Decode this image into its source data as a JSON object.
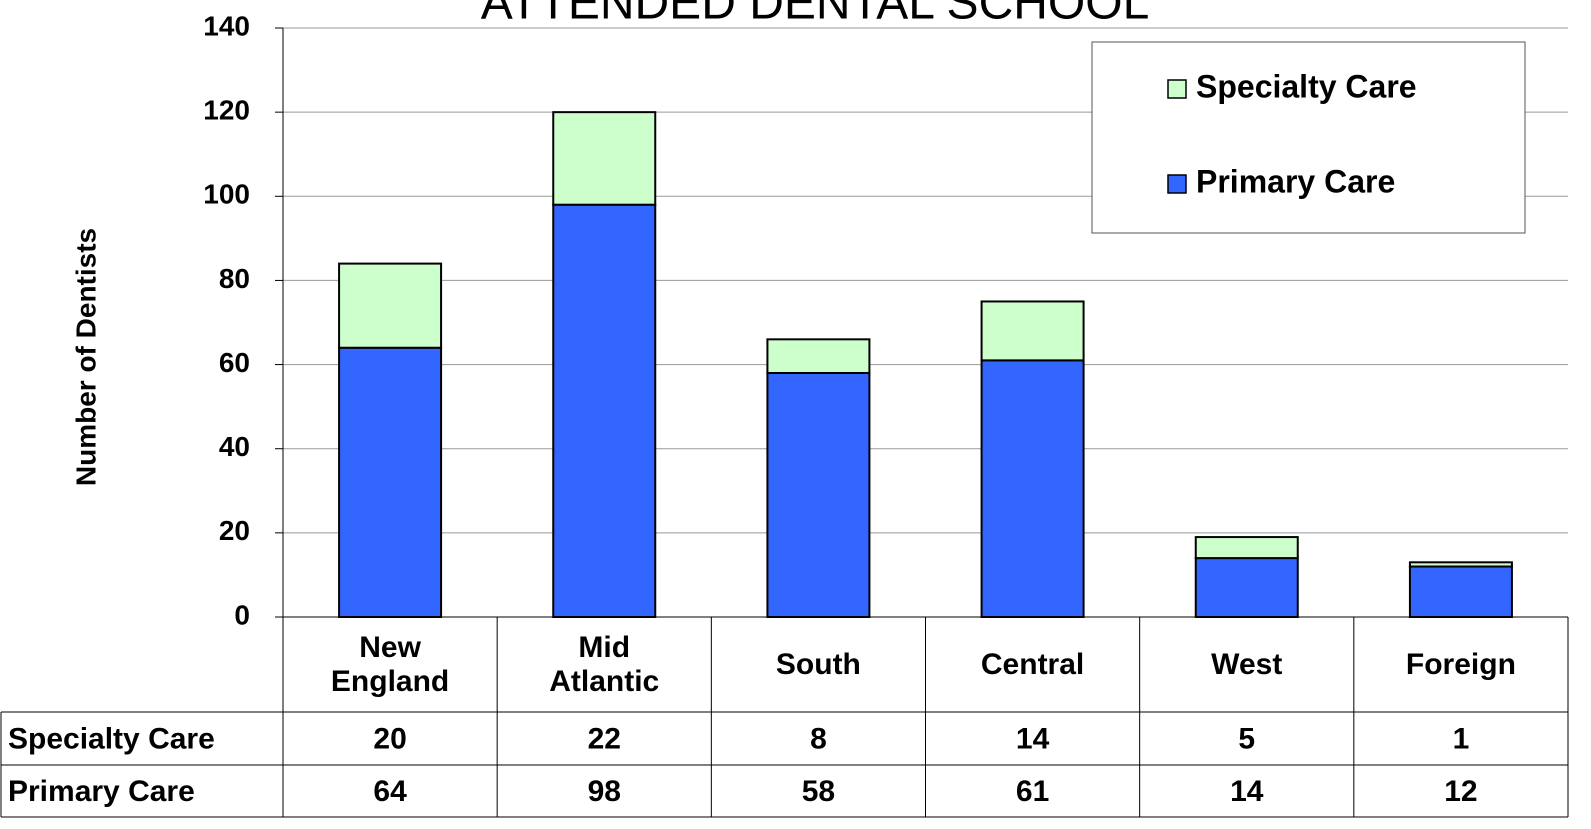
{
  "chart_data": {
    "type": "stacked_bar",
    "title": "ATTENDED DENTAL SCHOOL",
    "y_label": "Number of Dentists",
    "categories": [
      "New England",
      "Mid Atlantic",
      "South",
      "Central",
      "West",
      "Foreign"
    ],
    "series": [
      {
        "name": "Specialty Care",
        "color": "#ccffcc",
        "values": [
          20,
          22,
          8,
          14,
          5,
          1
        ]
      },
      {
        "name": "Primary Care",
        "color": "#3366ff",
        "values": [
          64,
          98,
          58,
          61,
          14,
          12
        ]
      }
    ],
    "stack_order": [
      "Primary Care",
      "Specialty Care"
    ],
    "ylim": [
      0,
      140
    ],
    "yticks": [
      0,
      20,
      40,
      60,
      80,
      100,
      120,
      140
    ],
    "grid": true,
    "legend": "upper right",
    "data_table": true
  }
}
